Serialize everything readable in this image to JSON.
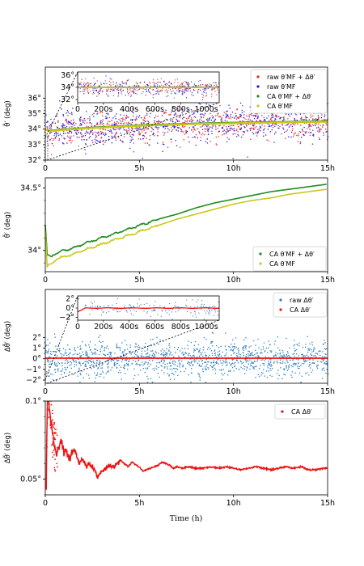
{
  "colors": {
    "raw_sum": "#ee2222",
    "raw_mf": "#1a1aee",
    "ca_sum": "#1e8c1e",
    "ca_mf": "#c8c81a",
    "raw_delta": "#2f7fbf",
    "ca_delta": "#ee1111"
  },
  "chart_data": [
    {
      "type": "scatter",
      "ylabel": "θ̃′ (deg)",
      "xlim": [
        0,
        15
      ],
      "ylim": [
        32,
        38
      ],
      "x_ticks": [
        "0",
        "5h",
        "10h",
        "15h"
      ],
      "y_ticks": [
        "32°",
        "33°",
        "34°",
        "35°",
        "36°"
      ],
      "series": [
        {
          "name": "raw  θ′MF + Δθ′",
          "mean": 34.3,
          "spread": 0.9
        },
        {
          "name": "raw  θ′MF",
          "mean": 34.3,
          "spread": 0.9
        },
        {
          "name": "CA  θ′MF + Δθ′",
          "x": [
            0,
            0.2,
            1,
            3,
            5,
            8,
            10,
            12,
            15
          ],
          "y": [
            34.0,
            33.9,
            34.0,
            34.15,
            34.27,
            34.38,
            34.43,
            34.47,
            34.53
          ]
        },
        {
          "name": "CA  θ′MF",
          "x": [
            0,
            0.2,
            1,
            3,
            5,
            8,
            10,
            12,
            15
          ],
          "y": [
            34.0,
            33.85,
            33.95,
            34.1,
            34.22,
            34.33,
            34.38,
            34.42,
            34.48
          ]
        }
      ],
      "legend": [
        "raw  θ′MF + Δθ′",
        "raw  θ′MF",
        "CA  θ′MF + Δθ′",
        "CA  θ′MF"
      ],
      "legend_position": "upper-right",
      "inset": {
        "x_ticks": [
          "0",
          "200s",
          "400s",
          "600s",
          "800s",
          "1000s"
        ],
        "y_ticks": [
          "32°",
          "34°",
          "36°"
        ],
        "xlim": [
          0,
          1100
        ],
        "ylim": [
          31.5,
          36.5
        ]
      }
    },
    {
      "type": "line",
      "ylabel": "θ̃′ (deg)",
      "xlim": [
        0,
        15
      ],
      "ylim": [
        33.83,
        34.58
      ],
      "x_ticks": [
        "0",
        "5h",
        "10h",
        "15h"
      ],
      "y_ticks": [
        "34°",
        "34.5°"
      ],
      "series": [
        {
          "name": "CA  θ′MF + Δθ′",
          "x": [
            0,
            0.1,
            0.3,
            0.6,
            1,
            1.5,
            2,
            3,
            4,
            5,
            6,
            7,
            8,
            9,
            10,
            11,
            12,
            13,
            14,
            15
          ],
          "y": [
            34.2,
            33.96,
            33.95,
            33.98,
            34.0,
            34.02,
            34.05,
            34.1,
            34.15,
            34.2,
            34.25,
            34.29,
            34.34,
            34.38,
            34.41,
            34.44,
            34.47,
            34.49,
            34.51,
            34.53
          ]
        },
        {
          "name": "CA  θ′MF",
          "x": [
            0,
            0.1,
            0.3,
            0.6,
            1,
            1.5,
            2,
            3,
            4,
            5,
            6,
            7,
            8,
            9,
            10,
            11,
            12,
            13,
            14,
            15
          ],
          "y": [
            34.15,
            33.87,
            33.89,
            33.93,
            33.95,
            33.97,
            34.0,
            34.05,
            34.1,
            34.15,
            34.2,
            34.25,
            34.29,
            34.33,
            34.37,
            34.4,
            34.42,
            34.45,
            34.47,
            34.49
          ]
        }
      ],
      "legend": [
        "CA  θ′MF + Δθ′",
        "CA  θ′MF"
      ],
      "legend_position": "lower-right"
    },
    {
      "type": "scatter",
      "ylabel": "Δθ̃′ (deg)",
      "xlim": [
        0,
        15
      ],
      "ylim": [
        -2.3,
        6.5
      ],
      "x_ticks": [
        "0",
        "5h",
        "10h",
        "15h"
      ],
      "y_ticks": [
        "−2°",
        "−1°",
        "0°",
        "1°",
        "2°"
      ],
      "series": [
        {
          "name": "raw  Δθ′",
          "mean": 0,
          "spread": 1.8
        },
        {
          "name": "CA  Δθ′",
          "x": [
            0,
            15
          ],
          "y": [
            0.05,
            0.05
          ]
        }
      ],
      "legend": [
        "raw  Δθ′",
        "CA  Δθ′"
      ],
      "legend_position": "upper-right",
      "inset": {
        "x_ticks": [
          "0",
          "200s",
          "400s",
          "600s",
          "800s",
          "1000s"
        ],
        "y_ticks": [
          "−2°",
          "0°",
          "2°"
        ],
        "xlim": [
          0,
          1100
        ],
        "ylim": [
          -2.6,
          2.6
        ]
      }
    },
    {
      "type": "line",
      "ylabel": "Δθ̃′ (deg)",
      "xlim": [
        0,
        15
      ],
      "ylim": [
        0.04,
        0.1
      ],
      "x_ticks": [
        "0",
        "5h",
        "10h",
        "15h"
      ],
      "y_ticks": [
        "0.05°",
        "0.1°"
      ],
      "xlabel": "Time (h)",
      "series": [
        {
          "name": "CA  Δθ′",
          "x": [
            0.05,
            0.1,
            0.15,
            0.2,
            0.3,
            0.4,
            0.5,
            0.6,
            0.7,
            0.8,
            0.9,
            1.0,
            1.1,
            1.2,
            1.3,
            1.4,
            1.5,
            1.6,
            1.7,
            1.8,
            1.9,
            2.0,
            2.1,
            2.2,
            2.3,
            2.5,
            2.7,
            2.8,
            2.9,
            3.0,
            3.2,
            3.4,
            3.6,
            3.8,
            4.0,
            4.2,
            4.4,
            4.6,
            4.8,
            5.0,
            5.2,
            5.4,
            5.6,
            5.8,
            6.0,
            6.2,
            6.4,
            6.6,
            6.8,
            7.0,
            7.3,
            7.6,
            8.0,
            8.4,
            8.8,
            9.2,
            9.6,
            10.0,
            10.4,
            10.8,
            11.2,
            11.6,
            12.0,
            12.4,
            12.8,
            13.2,
            13.6,
            14.0,
            14.4,
            14.8,
            15.0
          ],
          "y": [
            0.043,
            0.095,
            0.105,
            0.098,
            0.088,
            0.078,
            0.07,
            0.066,
            0.07,
            0.074,
            0.072,
            0.066,
            0.068,
            0.066,
            0.062,
            0.067,
            0.07,
            0.068,
            0.064,
            0.06,
            0.062,
            0.063,
            0.06,
            0.058,
            0.06,
            0.058,
            0.054,
            0.051,
            0.054,
            0.055,
            0.057,
            0.059,
            0.058,
            0.059,
            0.062,
            0.06,
            0.058,
            0.061,
            0.059,
            0.058,
            0.055,
            0.056,
            0.057,
            0.058,
            0.059,
            0.061,
            0.06,
            0.059,
            0.057,
            0.058,
            0.057,
            0.058,
            0.057,
            0.057,
            0.058,
            0.057,
            0.058,
            0.057,
            0.056,
            0.057,
            0.058,
            0.057,
            0.056,
            0.057,
            0.058,
            0.057,
            0.058,
            0.056,
            0.056,
            0.057,
            0.057
          ]
        }
      ],
      "legend": [
        "CA  Δθ′"
      ],
      "legend_position": "upper-right"
    }
  ]
}
